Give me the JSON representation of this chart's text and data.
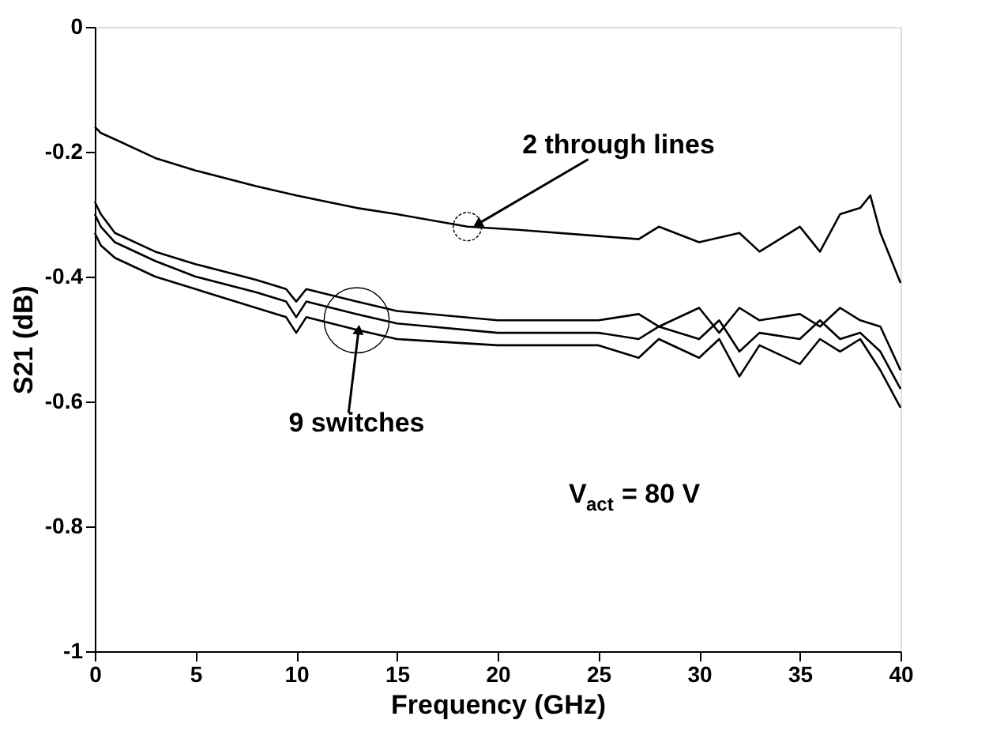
{
  "chart_data": {
    "type": "line",
    "xlabel": "Frequency (GHz)",
    "ylabel": "S21 (dB)",
    "xlim": [
      0,
      40
    ],
    "xticks": [
      0,
      5,
      10,
      15,
      20,
      25,
      30,
      35,
      40
    ],
    "ylim": [
      -1,
      0
    ],
    "yticks": [
      -1,
      -0.8,
      -0.6,
      -0.4,
      -0.2,
      0
    ],
    "grid": false,
    "legend": false,
    "marker": "none",
    "line_style": "solid",
    "annotations": [
      {
        "text": "2 through lines",
        "x": 18.5,
        "y": -0.32
      },
      {
        "text": "9 switches",
        "x": 13,
        "y": -0.47
      },
      "V$_{act}$ = 80 V"
    ],
    "series": [
      {
        "color": "#000000",
        "x": [
          0,
          0.3,
          1,
          3,
          5,
          8,
          10,
          13,
          15,
          18.5,
          21,
          25,
          27,
          28,
          30,
          32,
          33,
          35,
          36,
          37,
          38,
          38.5,
          39,
          40
        ],
        "values": [
          -0.16,
          -0.17,
          -0.18,
          -0.21,
          -0.23,
          -0.255,
          -0.27,
          -0.29,
          -0.3,
          -0.32,
          -0.325,
          -0.335,
          -0.34,
          -0.32,
          -0.345,
          -0.33,
          -0.36,
          -0.32,
          -0.36,
          -0.3,
          -0.29,
          -0.27,
          -0.33,
          -0.41
        ]
      },
      {
        "color": "#000000",
        "x": [
          0,
          0.3,
          1,
          3,
          5,
          8,
          9.5,
          10,
          10.5,
          13,
          15,
          20,
          25,
          27,
          28,
          30,
          31,
          32,
          33,
          35,
          36,
          37,
          38,
          39,
          40
        ],
        "values": [
          -0.28,
          -0.3,
          -0.33,
          -0.36,
          -0.38,
          -0.405,
          -0.42,
          -0.44,
          -0.42,
          -0.44,
          -0.455,
          -0.47,
          -0.47,
          -0.46,
          -0.48,
          -0.45,
          -0.49,
          -0.45,
          -0.47,
          -0.46,
          -0.48,
          -0.45,
          -0.47,
          -0.48,
          -0.55
        ]
      },
      {
        "color": "#000000",
        "x": [
          0,
          0.3,
          1,
          3,
          5,
          8,
          9.5,
          10,
          10.5,
          13,
          15,
          20,
          25,
          27,
          28,
          30,
          31,
          32,
          33,
          35,
          36,
          37,
          38,
          39,
          40
        ],
        "values": [
          -0.3,
          -0.32,
          -0.345,
          -0.375,
          -0.4,
          -0.425,
          -0.44,
          -0.465,
          -0.44,
          -0.46,
          -0.475,
          -0.49,
          -0.49,
          -0.5,
          -0.48,
          -0.5,
          -0.47,
          -0.52,
          -0.49,
          -0.5,
          -0.47,
          -0.5,
          -0.49,
          -0.52,
          -0.58
        ]
      },
      {
        "color": "#000000",
        "x": [
          0,
          0.3,
          1,
          3,
          5,
          8,
          9.5,
          10,
          10.5,
          13,
          15,
          20,
          25,
          27,
          28,
          30,
          31,
          32,
          33,
          35,
          36,
          37,
          38,
          39,
          40
        ],
        "values": [
          -0.33,
          -0.35,
          -0.37,
          -0.4,
          -0.42,
          -0.45,
          -0.465,
          -0.49,
          -0.465,
          -0.485,
          -0.5,
          -0.51,
          -0.51,
          -0.53,
          -0.5,
          -0.53,
          -0.5,
          -0.56,
          -0.51,
          -0.54,
          -0.5,
          -0.52,
          -0.5,
          -0.55,
          -0.61
        ]
      }
    ]
  }
}
